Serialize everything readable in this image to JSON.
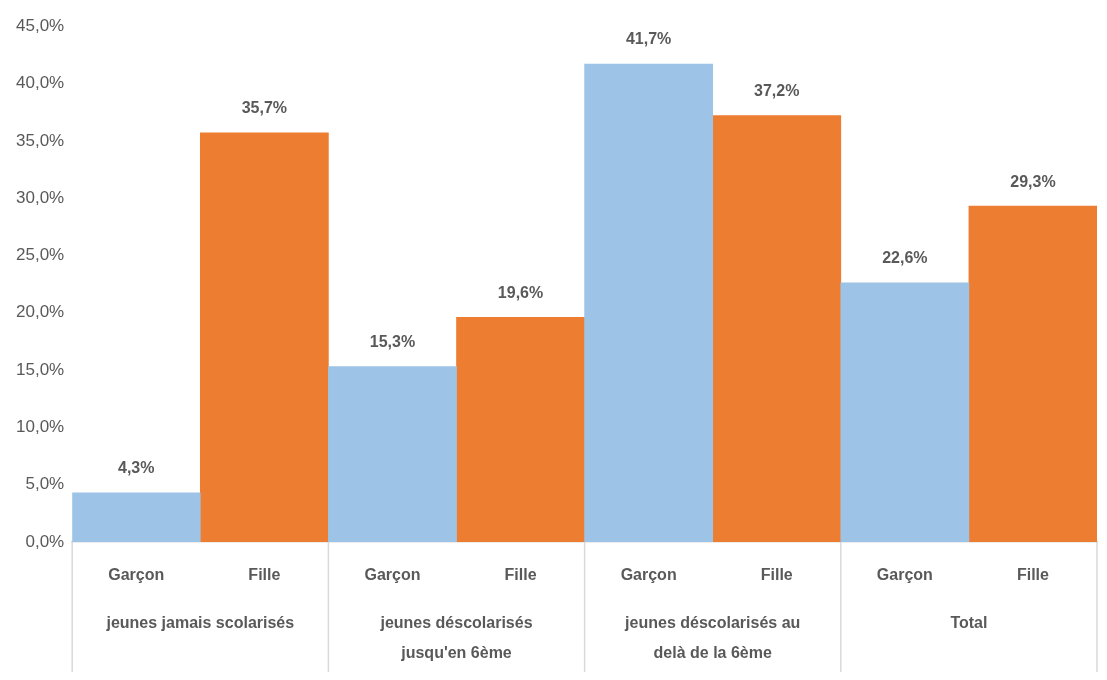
{
  "chart_data": {
    "type": "bar",
    "categories": [
      "jeunes jamais scolarisés",
      "jeunes déscolarisés jusqu'en 6ème",
      "jeunes déscolarisés au delà de la 6ème",
      "Total"
    ],
    "series": [
      {
        "name": "Garçon",
        "color": "#9dc3e6",
        "values": [
          4.3,
          15.3,
          41.7,
          22.6
        ],
        "value_labels": [
          "4,3%",
          "15,3%",
          "41,7%",
          "22,6%"
        ]
      },
      {
        "name": "Fille",
        "color": "#ed7d31",
        "values": [
          35.7,
          19.6,
          37.2,
          29.3
        ],
        "value_labels": [
          "35,7%",
          "19,6%",
          "37,2%",
          "29,3%"
        ]
      }
    ],
    "ylim": [
      0,
      45
    ],
    "yticks": [
      {
        "value": 0,
        "label": "0,0%"
      },
      {
        "value": 5,
        "label": "5,0%"
      },
      {
        "value": 10,
        "label": "10,0%"
      },
      {
        "value": 15,
        "label": "15,0%"
      },
      {
        "value": 20,
        "label": "20,0%"
      },
      {
        "value": 25,
        "label": "25,0%"
      },
      {
        "value": 30,
        "label": "30,0%"
      },
      {
        "value": 35,
        "label": "35,0%"
      },
      {
        "value": 40,
        "label": "40,0%"
      },
      {
        "value": 45,
        "label": "45,0%"
      }
    ],
    "grid": false,
    "legend": false
  }
}
